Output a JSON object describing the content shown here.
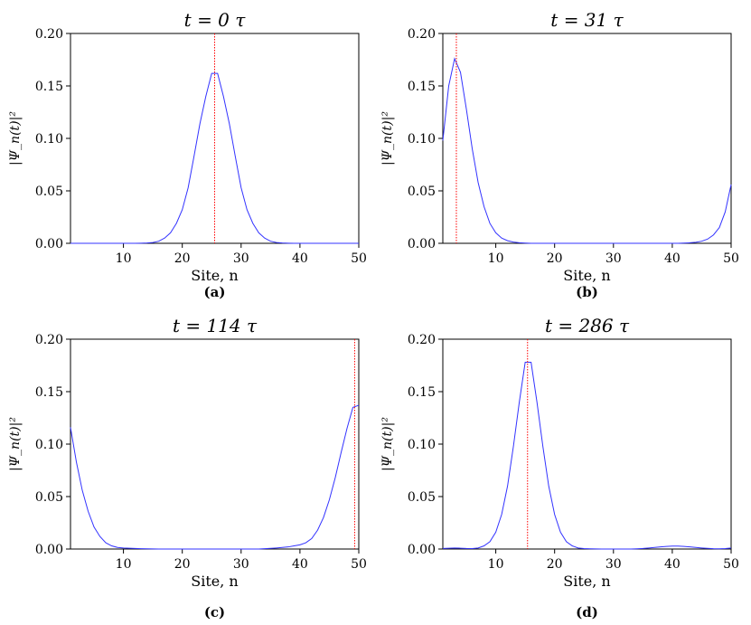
{
  "chart_data": [
    {
      "type": "line",
      "title": "t = 0 τ",
      "caption": "(a)",
      "xlabel": "Site, n",
      "ylabel": "|Ψ_n(t)|²",
      "xlim": [
        1,
        50
      ],
      "ylim": [
        0,
        0.2
      ],
      "xticks": [
        "10",
        "20",
        "30",
        "40",
        "50"
      ],
      "yticks": [
        "0.00",
        "0.05",
        "0.10",
        "0.15",
        "0.20"
      ],
      "marker_x": 25.5,
      "series": [
        {
          "color": "#3333ff",
          "x": [
            1,
            2,
            3,
            4,
            5,
            6,
            7,
            8,
            9,
            10,
            11,
            12,
            13,
            14,
            15,
            16,
            17,
            18,
            19,
            20,
            21,
            22,
            23,
            24,
            25,
            26,
            27,
            28,
            29,
            30,
            31,
            32,
            33,
            34,
            35,
            36,
            37,
            38,
            39,
            40,
            41,
            42,
            43,
            44,
            45,
            46,
            47,
            48,
            49,
            50
          ],
          "y": [
            0,
            0,
            0,
            0,
            0,
            0,
            0,
            0,
            0,
            0,
            0,
            0,
            0.0001,
            0.0003,
            0.0008,
            0.002,
            0.005,
            0.01,
            0.019,
            0.032,
            0.053,
            0.083,
            0.114,
            0.14,
            0.162,
            0.162,
            0.14,
            0.114,
            0.083,
            0.053,
            0.032,
            0.019,
            0.01,
            0.005,
            0.002,
            0.0008,
            0.0003,
            0.0001,
            0,
            0,
            0,
            0,
            0,
            0,
            0,
            0,
            0,
            0,
            0,
            0
          ]
        }
      ]
    },
    {
      "type": "line",
      "title": "t = 31 τ",
      "caption": "(b)",
      "xlabel": "Site, n",
      "ylabel": "|Ψ_n(t)|²",
      "xlim": [
        1,
        50
      ],
      "ylim": [
        0,
        0.2
      ],
      "xticks": [
        "10",
        "20",
        "30",
        "40",
        "50"
      ],
      "yticks": [
        "0.00",
        "0.05",
        "0.10",
        "0.15",
        "0.20"
      ],
      "marker_x": 3.3,
      "series": [
        {
          "color": "#3333ff",
          "x": [
            1,
            2,
            3,
            4,
            5,
            6,
            7,
            8,
            9,
            10,
            11,
            12,
            13,
            14,
            15,
            16,
            17,
            18,
            19,
            20,
            21,
            22,
            23,
            24,
            25,
            26,
            27,
            28,
            29,
            30,
            31,
            32,
            33,
            34,
            35,
            36,
            37,
            38,
            39,
            40,
            41,
            42,
            43,
            44,
            45,
            46,
            47,
            48,
            49,
            50
          ],
          "y": [
            0.098,
            0.15,
            0.176,
            0.163,
            0.128,
            0.09,
            0.058,
            0.035,
            0.019,
            0.01,
            0.005,
            0.0025,
            0.0012,
            0.0005,
            0.0002,
            0,
            0,
            0,
            0,
            0,
            0,
            0,
            0,
            0,
            0,
            0,
            0,
            0,
            0,
            0,
            0,
            0,
            0,
            0,
            0,
            0,
            0,
            0,
            0,
            0,
            0,
            0.0002,
            0.0005,
            0.001,
            0.002,
            0.004,
            0.008,
            0.015,
            0.03,
            0.056
          ]
        }
      ]
    },
    {
      "type": "line",
      "title": "t = 114 τ",
      "caption": "(c)",
      "xlabel": "Site, n",
      "ylabel": "|Ψ_n(t)|²",
      "xlim": [
        1,
        50
      ],
      "ylim": [
        0,
        0.2
      ],
      "xticks": [
        "10",
        "20",
        "30",
        "40",
        "50"
      ],
      "yticks": [
        "0.00",
        "0.05",
        "0.10",
        "0.15",
        "0.20"
      ],
      "marker_x": 49.3,
      "series": [
        {
          "color": "#3333ff",
          "x": [
            1,
            2,
            3,
            4,
            5,
            6,
            7,
            8,
            9,
            10,
            11,
            12,
            13,
            14,
            15,
            16,
            17,
            18,
            19,
            20,
            21,
            22,
            23,
            24,
            25,
            26,
            27,
            28,
            29,
            30,
            31,
            32,
            33,
            34,
            35,
            36,
            37,
            38,
            39,
            40,
            41,
            42,
            43,
            44,
            45,
            46,
            47,
            48,
            49,
            50
          ],
          "y": [
            0.116,
            0.083,
            0.056,
            0.036,
            0.021,
            0.012,
            0.006,
            0.003,
            0.0015,
            0.001,
            0.0008,
            0.0005,
            0.0003,
            0.0002,
            0.0001,
            0,
            0,
            0,
            0,
            0,
            0,
            0,
            0,
            0,
            0,
            0,
            0,
            0,
            0,
            0,
            0,
            0,
            0,
            0.0003,
            0.0006,
            0.001,
            0.0015,
            0.002,
            0.003,
            0.004,
            0.006,
            0.01,
            0.018,
            0.03,
            0.047,
            0.068,
            0.092,
            0.115,
            0.135,
            0.137
          ]
        }
      ]
    },
    {
      "type": "line",
      "title": "t = 286 τ",
      "caption": "(d)",
      "xlabel": "Site, n",
      "ylabel": "|Ψ_n(t)|²",
      "xlim": [
        1,
        50
      ],
      "ylim": [
        0,
        0.2
      ],
      "xticks": [
        "10",
        "20",
        "30",
        "40",
        "50"
      ],
      "yticks": [
        "0.00",
        "0.05",
        "0.10",
        "0.15",
        "0.20"
      ],
      "marker_x": 15.4,
      "series": [
        {
          "color": "#3333ff",
          "x": [
            1,
            2,
            3,
            4,
            5,
            6,
            7,
            8,
            9,
            10,
            11,
            12,
            13,
            14,
            15,
            16,
            17,
            18,
            19,
            20,
            21,
            22,
            23,
            24,
            25,
            26,
            27,
            28,
            29,
            30,
            31,
            32,
            33,
            34,
            35,
            36,
            37,
            38,
            39,
            40,
            41,
            42,
            43,
            44,
            45,
            46,
            47,
            48,
            49,
            50
          ],
          "y": [
            0.0005,
            0.0008,
            0.001,
            0.0008,
            0.0005,
            0.0004,
            0.001,
            0.003,
            0.007,
            0.016,
            0.033,
            0.06,
            0.098,
            0.14,
            0.178,
            0.178,
            0.14,
            0.098,
            0.06,
            0.033,
            0.016,
            0.007,
            0.003,
            0.001,
            0.0004,
            0.0002,
            0.0001,
            0,
            0,
            0,
            0,
            0,
            0,
            0.0002,
            0.0005,
            0.001,
            0.0015,
            0.002,
            0.0025,
            0.0028,
            0.0028,
            0.0025,
            0.002,
            0.0015,
            0.001,
            0.0006,
            0.0003,
            0.0002,
            0.0004,
            0.001
          ]
        }
      ]
    }
  ]
}
